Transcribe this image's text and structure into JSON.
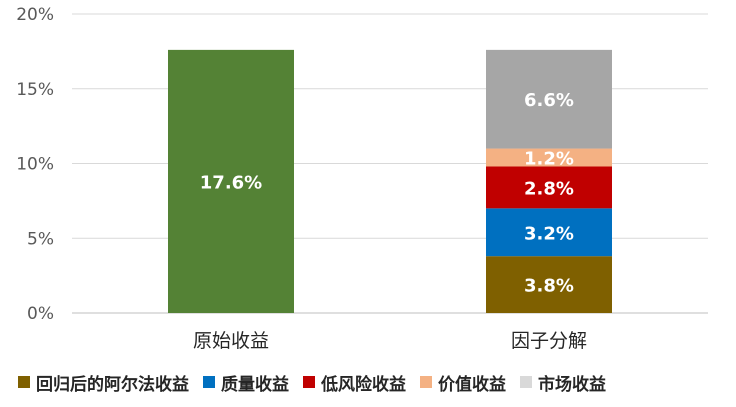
{
  "chart_data": {
    "type": "bar",
    "stacked": true,
    "categories": [
      "原始收益",
      "因子分解"
    ],
    "y_ticks": [
      "0%",
      "5%",
      "10%",
      "15%",
      "20%"
    ],
    "ylim": [
      0,
      20
    ],
    "grid": true,
    "legend_position": "bottom",
    "series": [
      {
        "name": "原始收益",
        "color": "#548235",
        "values": [
          17.6,
          null
        ],
        "labels": [
          "17.6%",
          ""
        ],
        "in_legend": false
      },
      {
        "name": "回归后的阿尔法收益",
        "color": "#7F6000",
        "values": [
          null,
          3.8
        ],
        "labels": [
          "",
          "3.8%"
        ],
        "in_legend": true
      },
      {
        "name": "质量收益",
        "color": "#0070C0",
        "values": [
          null,
          3.2
        ],
        "labels": [
          "",
          "3.2%"
        ],
        "in_legend": true
      },
      {
        "name": "低风险收益",
        "color": "#C00000",
        "values": [
          null,
          2.8
        ],
        "labels": [
          "",
          "2.8%"
        ],
        "in_legend": true
      },
      {
        "name": "价值收益",
        "color": "#F4B183",
        "values": [
          null,
          1.2
        ],
        "labels": [
          "",
          "1.2%"
        ],
        "in_legend": true
      },
      {
        "name": "市场收益",
        "color": "#A6A6A6",
        "legend_color": "#D9D9D9",
        "values": [
          null,
          6.6
        ],
        "labels": [
          "",
          "6.6%"
        ],
        "in_legend": true
      }
    ]
  }
}
